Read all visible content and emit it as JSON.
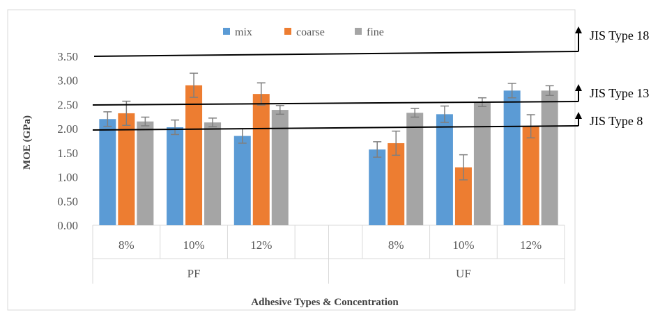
{
  "chart_data": {
    "type": "bar",
    "title": "",
    "xlabel": "Adhesive Types & Concentration",
    "ylabel": "MOE (GPa)",
    "ylim": [
      0,
      3.5
    ],
    "yticks": [
      "0.00",
      "0.50",
      "1.00",
      "1.50",
      "2.00",
      "2.50",
      "3.00",
      "3.50"
    ],
    "groups": [
      {
        "name": "PF",
        "categories": [
          "8%",
          "10%",
          "12%"
        ]
      },
      {
        "name": "UF",
        "categories": [
          "8%",
          "10%",
          "12%"
        ]
      }
    ],
    "legend_position": "top",
    "grid": false,
    "series": [
      {
        "name": "mix",
        "color": "#5b9bd5",
        "values": [
          2.2,
          2.03,
          1.85,
          1.57,
          2.3,
          2.79
        ],
        "errors": [
          0.15,
          0.15,
          0.15,
          0.16,
          0.17,
          0.15
        ]
      },
      {
        "name": "coarse",
        "color": "#ed7d31",
        "values": [
          2.32,
          2.9,
          2.72,
          1.7,
          1.2,
          2.05
        ],
        "errors": [
          0.25,
          0.25,
          0.23,
          0.25,
          0.26,
          0.24
        ]
      },
      {
        "name": "fine",
        "color": "#a5a5a5",
        "values": [
          2.15,
          2.13,
          2.39,
          2.33,
          2.55,
          2.79
        ],
        "errors": [
          0.09,
          0.09,
          0.09,
          0.09,
          0.09,
          0.1
        ]
      }
    ],
    "reference_lines": [
      {
        "label": "JIS Type 18",
        "value": 3.5
      },
      {
        "label": "JIS Type 13",
        "value": 2.5
      },
      {
        "label": "JIS Type 8",
        "value": 2.0
      }
    ]
  }
}
